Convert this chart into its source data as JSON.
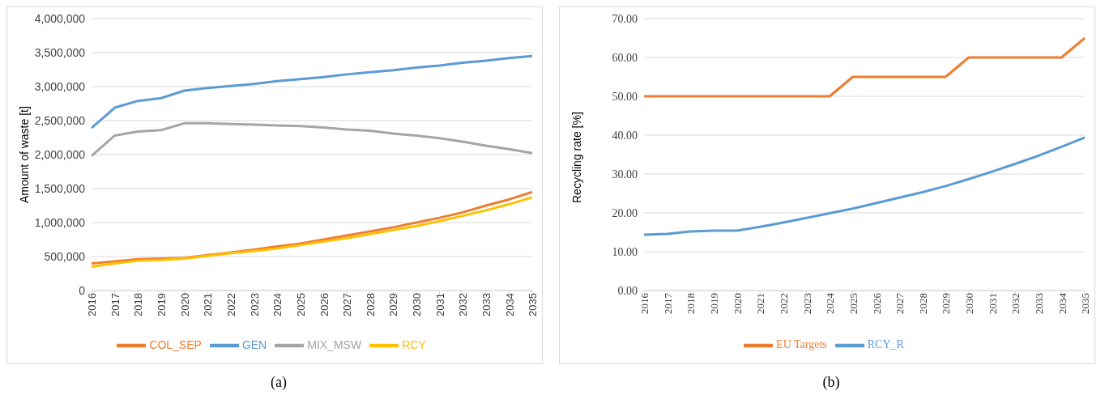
{
  "chart_data": [
    {
      "type": "line",
      "ylabel": "Amount of waste [t]",
      "categories": [
        "2016",
        "2017",
        "2018",
        "2019",
        "2020",
        "2021",
        "2022",
        "2023",
        "2024",
        "2025",
        "2026",
        "2027",
        "2028",
        "2029",
        "2030",
        "2031",
        "2032",
        "2033",
        "2034",
        "2035"
      ],
      "series": [
        {
          "name": "GEN",
          "color": "#5b9bd5",
          "values": [
            2390000,
            2690000,
            2790000,
            2830000,
            2940000,
            2980000,
            3010000,
            3040000,
            3080000,
            3110000,
            3140000,
            3180000,
            3210000,
            3240000,
            3280000,
            3310000,
            3350000,
            3380000,
            3420000,
            3450000
          ]
        },
        {
          "name": "COL_SEP",
          "color": "#ed7d31",
          "values": [
            400000,
            430000,
            460000,
            470000,
            480000,
            520000,
            560000,
            600000,
            650000,
            690000,
            750000,
            810000,
            870000,
            930000,
            1000000,
            1070000,
            1150000,
            1250000,
            1340000,
            1450000
          ]
        },
        {
          "name": "MIX_MSW",
          "color": "#a5a5a5",
          "values": [
            1980000,
            2280000,
            2340000,
            2360000,
            2460000,
            2460000,
            2450000,
            2440000,
            2430000,
            2420000,
            2400000,
            2370000,
            2350000,
            2310000,
            2280000,
            2240000,
            2190000,
            2130000,
            2080000,
            2020000
          ]
        },
        {
          "name": "RCY",
          "color": "#ffc000",
          "values": [
            350000,
            400000,
            440000,
            450000,
            470000,
            510000,
            550000,
            580000,
            620000,
            670000,
            720000,
            770000,
            830000,
            890000,
            950000,
            1020000,
            1100000,
            1180000,
            1270000,
            1370000
          ]
        }
      ],
      "ylim": [
        0,
        4000000
      ],
      "yticks": [
        {
          "value": 0,
          "label": "0"
        },
        {
          "value": 500000,
          "label": "500,000"
        },
        {
          "value": 1000000,
          "label": "1,000,000"
        },
        {
          "value": 1500000,
          "label": "1,500,000"
        },
        {
          "value": 2000000,
          "label": "2,000,000"
        },
        {
          "value": 2500000,
          "label": "2,500,000"
        },
        {
          "value": 3000000,
          "label": "3,000,000"
        },
        {
          "value": 3500000,
          "label": "3,500,000"
        },
        {
          "value": 4000000,
          "label": "4,000,000"
        }
      ],
      "grid": "y",
      "legend": "bottom",
      "marker": "none",
      "line_style": "solid",
      "annotations": [
        "(a)"
      ]
    },
    {
      "type": "line",
      "ylabel": "Recycling rate [%]",
      "categories": [
        "2016",
        "2017",
        "2018",
        "2019",
        "2020",
        "2021",
        "2022",
        "2023",
        "2024",
        "2025",
        "2026",
        "2027",
        "2028",
        "2029",
        "2030",
        "2031",
        "2032",
        "2033",
        "2034",
        "2035"
      ],
      "series": [
        {
          "name": "RCY_R",
          "color": "#5b9bd5",
          "values": [
            14.4,
            14.6,
            15.2,
            15.4,
            15.4,
            16.4,
            17.5,
            18.7,
            19.9,
            21.1,
            22.5,
            23.9,
            25.3,
            26.9,
            28.7,
            30.6,
            32.6,
            34.7,
            37.0,
            39.4
          ]
        },
        {
          "name": "EU Targets",
          "color": "#ed7d31",
          "values": [
            50,
            50,
            50,
            50,
            50,
            50,
            50,
            50,
            50,
            55,
            55,
            55,
            55,
            55,
            60,
            60,
            60,
            60,
            60,
            65
          ]
        }
      ],
      "ylim": [
        0,
        70
      ],
      "yticks": [
        {
          "value": 0,
          "label": "0.00"
        },
        {
          "value": 10,
          "label": "10.00"
        },
        {
          "value": 20,
          "label": "20.00"
        },
        {
          "value": 30,
          "label": "30.00"
        },
        {
          "value": 40,
          "label": "40.00"
        },
        {
          "value": 50,
          "label": "50.00"
        },
        {
          "value": 60,
          "label": "60.00"
        },
        {
          "value": 70,
          "label": "70.00"
        }
      ],
      "grid": "y",
      "legend": "bottom",
      "marker": "none",
      "line_style": "solid",
      "annotations": [
        "(b)"
      ]
    }
  ]
}
